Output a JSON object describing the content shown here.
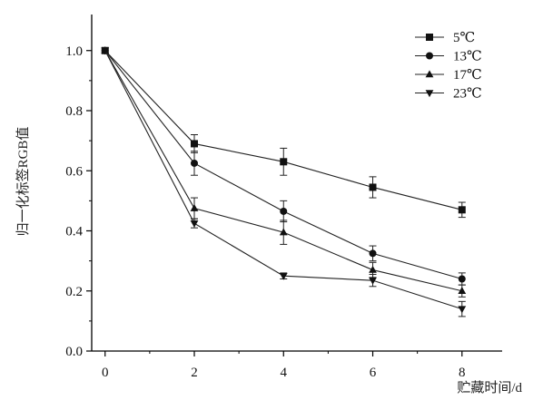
{
  "chart_data": {
    "type": "line",
    "title": "",
    "xlabel": "贮藏时间/d",
    "ylabel": "归一化标签RGB值",
    "xlim": [
      -0.3,
      8.9
    ],
    "ylim": [
      0,
      1.12
    ],
    "xticks": [
      0,
      2,
      4,
      6,
      8
    ],
    "xtick_labels": [
      "0",
      "2",
      "4",
      "6",
      "8"
    ],
    "yticks": [
      0.0,
      0.2,
      0.4,
      0.6,
      0.8,
      1.0
    ],
    "ytick_labels": [
      "0.0",
      "0.2",
      "0.4",
      "0.6",
      "0.8",
      "1.0"
    ],
    "grid": false,
    "legend_position": "top-right",
    "x": [
      0,
      2,
      4,
      6,
      8
    ],
    "series": [
      {
        "name": "5℃",
        "marker": "square",
        "values": [
          1.0,
          0.69,
          0.63,
          0.545,
          0.47
        ],
        "errors": [
          0,
          0.03,
          0.045,
          0.035,
          0.025
        ]
      },
      {
        "name": "13℃",
        "marker": "circle",
        "values": [
          1.0,
          0.625,
          0.465,
          0.325,
          0.24
        ],
        "errors": [
          0,
          0.04,
          0.035,
          0.025,
          0.02
        ]
      },
      {
        "name": "17℃",
        "marker": "triangle-up",
        "values": [
          1.0,
          0.475,
          0.395,
          0.27,
          0.2
        ],
        "errors": [
          0,
          0.035,
          0.04,
          0.025,
          0.02
        ]
      },
      {
        "name": "23℃",
        "marker": "triangle-down",
        "values": [
          1.0,
          0.425,
          0.25,
          0.235,
          0.14
        ],
        "errors": [
          0,
          0.015,
          0.01,
          0.02,
          0.025
        ]
      }
    ]
  }
}
